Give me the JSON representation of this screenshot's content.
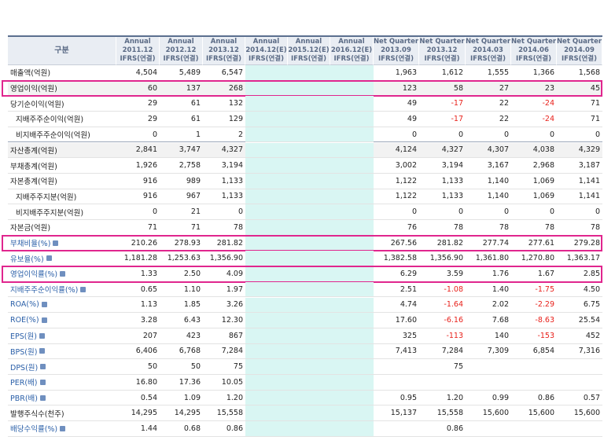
{
  "header": [
    "구분",
    [
      "Annual",
      "2011.12",
      "IFRS(연결)"
    ],
    [
      "Annual",
      "2012.12",
      "IFRS(연결)"
    ],
    [
      "Annual",
      "2013.12",
      "IFRS(연결)"
    ],
    [
      "Annual",
      "2014.12(E)",
      "IFRS(연결)"
    ],
    [
      "Annual",
      "2015.12(E)",
      "IFRS(연결)"
    ],
    [
      "Annual",
      "2016.12(E)",
      "IFRS(연결)"
    ],
    [
      "Net Quarter",
      "2013.09",
      "IFRS(연결)"
    ],
    [
      "Net Quarter",
      "2013.12",
      "IFRS(연결)"
    ],
    [
      "Net Quarter",
      "2014.03",
      "IFRS(연결)"
    ],
    [
      "Net Quarter",
      "2014.06",
      "IFRS(연결)"
    ],
    [
      "Net Quarter",
      "2014.09",
      "IFRS(연결)"
    ]
  ],
  "rows": [
    {
      "label": "매출액(억원)",
      "cells": [
        "4,504",
        "5,489",
        "6,547",
        null,
        null,
        null,
        "1,963",
        "1,612",
        "1,555",
        "1,366",
        "1,568"
      ]
    },
    {
      "label": "영업이익(억원)",
      "cells": [
        "60",
        "137",
        "268",
        null,
        null,
        null,
        "123",
        "58",
        "27",
        "23",
        "45"
      ]
    },
    {
      "label": "당기순이익(억원)",
      "cells": [
        "29",
        "61",
        "132",
        null,
        null,
        null,
        "49",
        "-17",
        "22",
        "-24",
        "71"
      ]
    },
    {
      "label": "지배주주순이익(억원)",
      "cells": [
        "29",
        "61",
        "129",
        null,
        null,
        null,
        "49",
        "-17",
        "22",
        "-24",
        "71"
      ]
    },
    {
      "label": "비지배주주순이익(억원)",
      "cells": [
        "0",
        "1",
        "2",
        null,
        null,
        null,
        "0",
        "0",
        "0",
        "0",
        "0"
      ]
    },
    {
      "label": "자산총계(억원)",
      "cells": [
        "2,841",
        "3,747",
        "4,327",
        null,
        null,
        null,
        "4,124",
        "4,327",
        "4,307",
        "4,038",
        "4,329"
      ]
    },
    {
      "label": "부채총계(억원)",
      "cells": [
        "1,926",
        "2,758",
        "3,194",
        null,
        null,
        null,
        "3,002",
        "3,194",
        "3,167",
        "2,968",
        "3,187"
      ]
    },
    {
      "label": "자본총계(억원)",
      "cells": [
        "916",
        "989",
        "1,133",
        null,
        null,
        null,
        "1,122",
        "1,133",
        "1,140",
        "1,069",
        "1,141"
      ]
    },
    {
      "label": "지배주주지분(억원)",
      "cells": [
        "916",
        "967",
        "1,133",
        null,
        null,
        null,
        "1,122",
        "1,133",
        "1,140",
        "1,069",
        "1,141"
      ]
    },
    {
      "label": "비지배주주지분(억원)",
      "cells": [
        "0",
        "21",
        "0",
        null,
        null,
        null,
        "0",
        "0",
        "0",
        "0",
        "0"
      ]
    },
    {
      "label": "자본금(억원)",
      "cells": [
        "71",
        "71",
        "78",
        null,
        null,
        null,
        "76",
        "78",
        "78",
        "78",
        "78"
      ]
    },
    {
      "label": "부채비율(%)",
      "cells": [
        "210.26",
        "278.93",
        "281.82",
        null,
        null,
        null,
        "267.56",
        "281.82",
        "277.74",
        "277.61",
        "279.28"
      ]
    },
    {
      "label": "유보율(%)",
      "cells": [
        "1,181.28",
        "1,253.63",
        "1,356.90",
        null,
        null,
        null,
        "1,382.58",
        "1,356.90",
        "1,361.80",
        "1,270.80",
        "1,363.17"
      ]
    },
    {
      "label": "영업이익률(%)",
      "cells": [
        "1.33",
        "2.50",
        "4.09",
        null,
        null,
        null,
        "6.29",
        "3.59",
        "1.76",
        "1.67",
        "2.85"
      ]
    },
    {
      "label": "지배주주순이익률(%)",
      "cells": [
        "0.65",
        "1.10",
        "1.97",
        null,
        null,
        null,
        "2.51",
        "-1.08",
        "1.40",
        "-1.75",
        "4.50"
      ]
    },
    {
      "label": "ROA(%)",
      "cells": [
        "1.13",
        "1.85",
        "3.26",
        null,
        null,
        null,
        "4.74",
        "-1.64",
        "2.02",
        "-2.29",
        "6.75"
      ]
    },
    {
      "label": "ROE(%)",
      "cells": [
        "3.28",
        "6.43",
        "12.30",
        null,
        null,
        null,
        "17.60",
        "-6.16",
        "7.68",
        "-8.63",
        "25.54"
      ]
    },
    {
      "label": "EPS(원)",
      "cells": [
        "207",
        "423",
        "867",
        null,
        null,
        null,
        "325",
        "-113",
        "140",
        "-153",
        "452"
      ]
    },
    {
      "label": "BPS(원)",
      "cells": [
        "6,406",
        "6,768",
        "7,284",
        null,
        null,
        null,
        "7,413",
        "7,284",
        "7,309",
        "6,854",
        "7,316"
      ]
    },
    {
      "label": "DPS(원)",
      "cells": [
        "50",
        "50",
        "75",
        null,
        null,
        null,
        null,
        "75",
        null,
        null,
        null
      ]
    },
    {
      "label": "PER(배)",
      "cells": [
        "16.80",
        "17.36",
        "10.05",
        null,
        null,
        null,
        null,
        null,
        null,
        null,
        null
      ]
    },
    {
      "label": "PBR(배)",
      "cells": [
        "0.54",
        "1.09",
        "1.20",
        null,
        null,
        null,
        "0.95",
        "1.20",
        "0.99",
        "0.86",
        "0.57"
      ]
    },
    {
      "label": "발행주식수(천주)",
      "cells": [
        "14,295",
        "14,295",
        "15,558",
        null,
        null,
        null,
        "15,137",
        "15,558",
        "15,600",
        "15,600",
        "15,600"
      ]
    },
    {
      "label": "배당수익률(%)",
      "cells": [
        "1.44",
        "0.68",
        "0.86",
        null,
        null,
        null,
        null,
        "0.86",
        null,
        null,
        null
      ]
    }
  ]
}
